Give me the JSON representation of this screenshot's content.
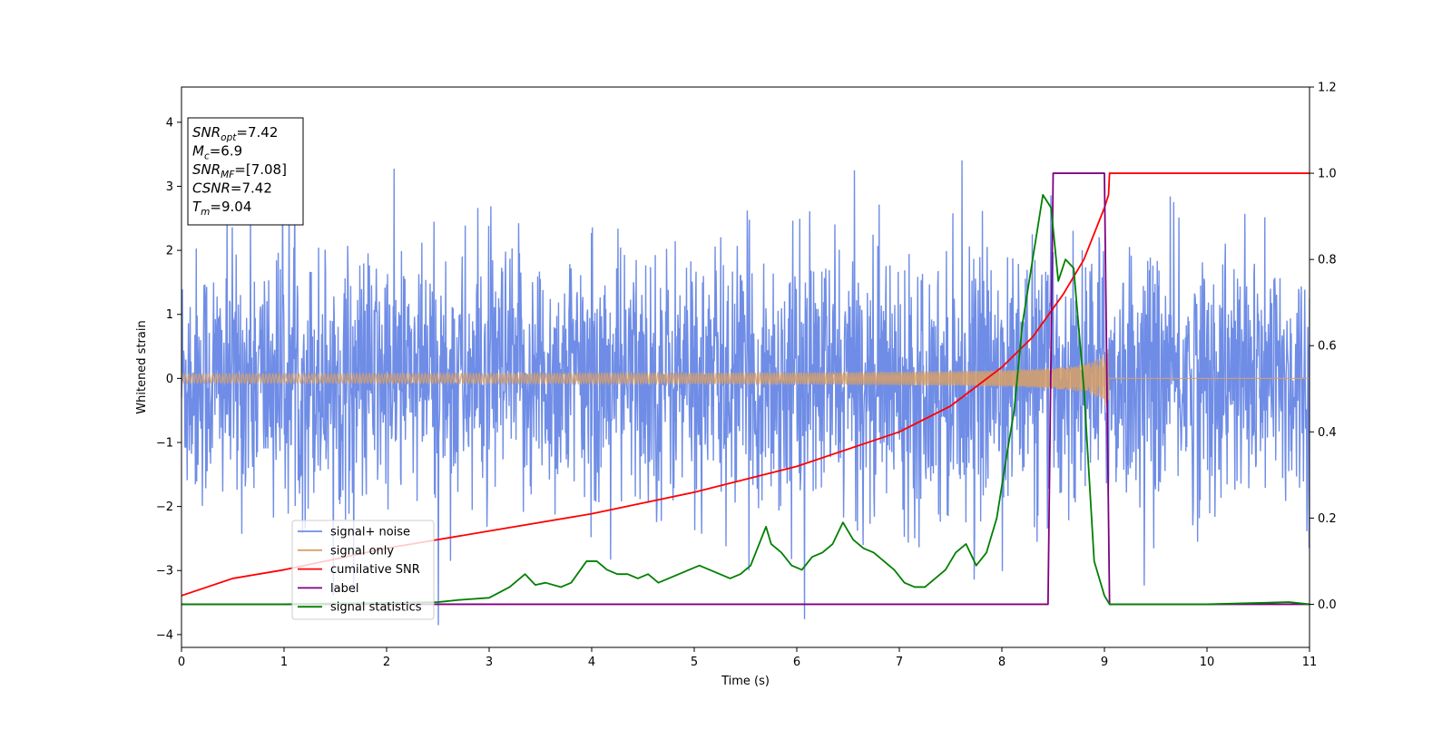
{
  "chart_data": {
    "type": "line",
    "xlabel": "Time (s)",
    "ylabel": "Whitened strain",
    "xlim": [
      0,
      11
    ],
    "ylim_left": [
      -4.2,
      4.55
    ],
    "ylim_right": [
      -0.1,
      1.2
    ],
    "x_ticks": [
      0,
      1,
      2,
      3,
      4,
      5,
      6,
      7,
      8,
      9,
      10,
      11
    ],
    "y_ticks_left": [
      -4,
      -3,
      -2,
      -1,
      0,
      1,
      2,
      3,
      4
    ],
    "y_ticks_right": [
      0.0,
      0.2,
      0.4,
      0.6,
      0.8,
      1.0,
      1.2
    ],
    "grid": false,
    "legend_position": "lower-left",
    "info_box": {
      "position": "top-left",
      "lines": [
        {
          "name": "SNR",
          "sub": "opt",
          "value": "=7.42"
        },
        {
          "name": "M",
          "sub": "c",
          "value": "=6.9"
        },
        {
          "name": "SNR",
          "sub": "MF",
          "value": "=[7.08]"
        },
        {
          "name": "CSNR",
          "sub": "",
          "value": "=7.42"
        },
        {
          "name": "T",
          "sub": "m",
          "value": "=9.04"
        }
      ]
    },
    "series": [
      {
        "name": "signal+ noise",
        "axis": "left",
        "color": "#6f8de6",
        "kind": "noise",
        "typical_amplitude": 1.0,
        "peak_values": [
          4.15,
          -3.78,
          3.6,
          -3.55
        ]
      },
      {
        "name": "signal only",
        "axis": "left",
        "color": "#d9a066",
        "kind": "chirp",
        "start_amplitude": 0.05,
        "merger_time": 9.04,
        "merger_amplitude": 0.55
      },
      {
        "name": "cumilative SNR",
        "axis": "right",
        "color": "#ff0000",
        "x": [
          0,
          0.5,
          1,
          2,
          3,
          4,
          5,
          6,
          7,
          7.5,
          8,
          8.3,
          8.6,
          8.8,
          9.0,
          9.04,
          9.05,
          11
        ],
        "y": [
          0.02,
          0.06,
          0.08,
          0.13,
          0.17,
          0.21,
          0.26,
          0.32,
          0.4,
          0.46,
          0.55,
          0.62,
          0.72,
          0.8,
          0.92,
          0.95,
          1.0,
          1.0
        ]
      },
      {
        "name": "label",
        "axis": "right",
        "color": "#800080",
        "x": [
          0,
          8.45,
          8.5,
          9.0,
          9.05,
          11
        ],
        "y": [
          0,
          0,
          1,
          1,
          0,
          0
        ]
      },
      {
        "name": "signal statistics",
        "axis": "right",
        "color": "#008000",
        "x": [
          0,
          1,
          1.5,
          2,
          2.5,
          2.7,
          3.0,
          3.2,
          3.35,
          3.45,
          3.55,
          3.7,
          3.8,
          3.95,
          4.05,
          4.15,
          4.25,
          4.35,
          4.45,
          4.55,
          4.65,
          4.75,
          4.85,
          4.95,
          5.05,
          5.15,
          5.25,
          5.35,
          5.45,
          5.55,
          5.6,
          5.7,
          5.75,
          5.85,
          5.95,
          6.05,
          6.15,
          6.25,
          6.35,
          6.45,
          6.55,
          6.65,
          6.75,
          6.85,
          6.95,
          7.05,
          7.15,
          7.25,
          7.35,
          7.45,
          7.55,
          7.65,
          7.75,
          7.85,
          7.95,
          8.05,
          8.12,
          8.2,
          8.3,
          8.4,
          8.48,
          8.55,
          8.62,
          8.7,
          8.8,
          8.9,
          9.0,
          9.05,
          9.1,
          10,
          10.8,
          11
        ],
        "y": [
          0,
          0,
          0.002,
          0.003,
          0.005,
          0.01,
          0.015,
          0.04,
          0.07,
          0.045,
          0.05,
          0.04,
          0.05,
          0.1,
          0.1,
          0.08,
          0.07,
          0.07,
          0.06,
          0.07,
          0.05,
          0.06,
          0.07,
          0.08,
          0.09,
          0.08,
          0.07,
          0.06,
          0.07,
          0.09,
          0.12,
          0.18,
          0.14,
          0.12,
          0.09,
          0.08,
          0.11,
          0.12,
          0.14,
          0.19,
          0.15,
          0.13,
          0.12,
          0.1,
          0.08,
          0.05,
          0.04,
          0.04,
          0.06,
          0.08,
          0.12,
          0.14,
          0.09,
          0.12,
          0.2,
          0.35,
          0.45,
          0.65,
          0.8,
          0.95,
          0.92,
          0.75,
          0.8,
          0.78,
          0.5,
          0.1,
          0.02,
          0.0,
          0.0,
          0.0,
          0.005,
          0.0
        ]
      }
    ]
  }
}
